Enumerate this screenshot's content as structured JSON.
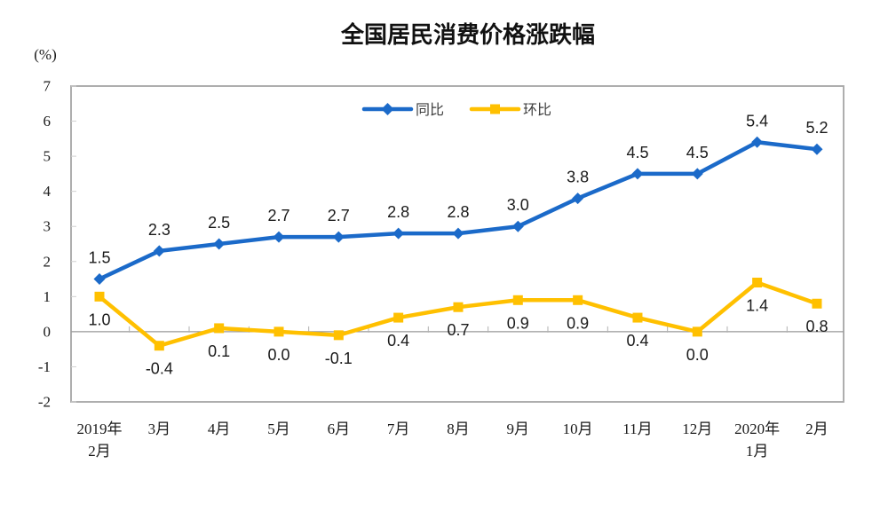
{
  "chart_data": {
    "type": "line",
    "title": "全国居民消费价格涨跌幅",
    "unit_label": "(%)",
    "categories": [
      "2019年\n2月",
      "3月",
      "4月",
      "5月",
      "6月",
      "7月",
      "8月",
      "9月",
      "10月",
      "11月",
      "12月",
      "2020年\n1月",
      "2月"
    ],
    "series": [
      {
        "name": "同比",
        "color": "#1b6ac9",
        "marker": "diamond",
        "label_position": "above",
        "values": [
          1.5,
          2.3,
          2.5,
          2.7,
          2.7,
          2.8,
          2.8,
          3.0,
          3.8,
          4.5,
          4.5,
          5.4,
          5.2
        ]
      },
      {
        "name": "环比",
        "color": "#ffc000",
        "marker": "square",
        "label_position": "below",
        "values": [
          1.0,
          -0.4,
          0.1,
          0.0,
          -0.1,
          0.4,
          0.7,
          0.9,
          0.9,
          0.4,
          0.0,
          1.4,
          0.8
        ]
      }
    ],
    "ylim": [
      -2,
      7
    ],
    "ytick_step": 1,
    "grid": false,
    "legend_position": "top-center",
    "axis_colors": {
      "border": "#a6a6a6",
      "zero_line": "#999999",
      "tick": "#b0b0b0"
    }
  }
}
